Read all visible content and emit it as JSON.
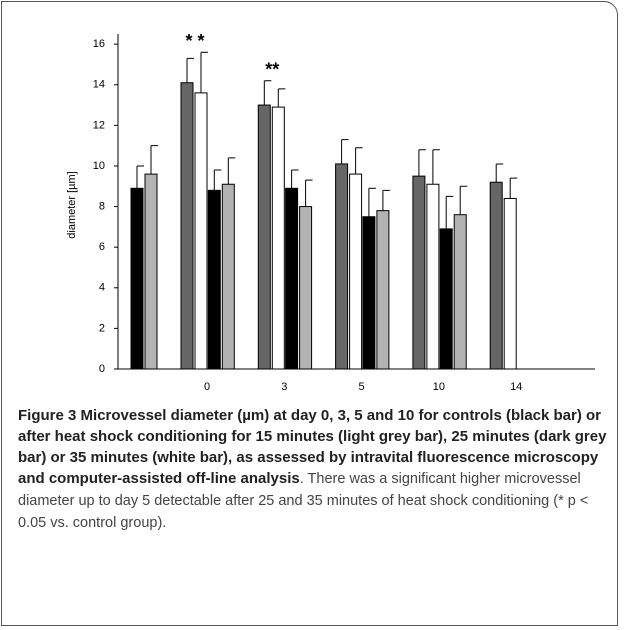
{
  "chart_data": {
    "type": "bar",
    "ylabel": "diameter [µm]",
    "categories": [
      "0",
      "3",
      "5",
      "10",
      "14"
    ],
    "series": [
      {
        "color": "#000000",
        "values": [
          8.9,
          8.8,
          8.9,
          7.5,
          6.9
        ],
        "errors": [
          1.1,
          1.0,
          0.9,
          1.4,
          1.6
        ]
      },
      {
        "color": "#b3b3b3",
        "values": [
          9.6,
          9.1,
          8.0,
          7.8,
          7.6
        ],
        "errors": [
          1.4,
          1.3,
          1.3,
          1.0,
          1.4
        ]
      },
      {
        "color": "#666666",
        "values": [
          14.1,
          13.0,
          10.1,
          9.5,
          9.2
        ],
        "errors": [
          1.2,
          1.2,
          1.2,
          1.3,
          0.9
        ]
      },
      {
        "color": "#ffffff",
        "values": [
          13.6,
          12.9,
          9.6,
          9.1,
          8.4
        ],
        "errors": [
          2.0,
          0.9,
          1.3,
          1.7,
          1.0
        ]
      }
    ],
    "annotations": [
      {
        "text": "* *",
        "category": "0"
      },
      {
        "text": "**",
        "category": "3"
      }
    ],
    "ylim": [
      0,
      16.5
    ],
    "yticks": [
      0,
      2,
      4,
      6,
      8,
      10,
      12,
      14,
      16
    ],
    "grid": false
  },
  "caption": {
    "label": "Figure 3",
    "title": "Microvessel diameter (µm) at day 0, 3, 5 and 10 for controls (black bar) or after heat shock conditioning for 15 minutes (light grey bar), 25 minutes (dark grey bar) or 35 minutes (white bar), as assessed by intravital fluorescence microscopy and computer-assisted off-line analysis",
    "text": ". There was a significant higher microvessel diameter up to day 5 detectable after 25 and 35 minutes of heat shock conditioning (* p < 0.05 vs. control group)."
  }
}
